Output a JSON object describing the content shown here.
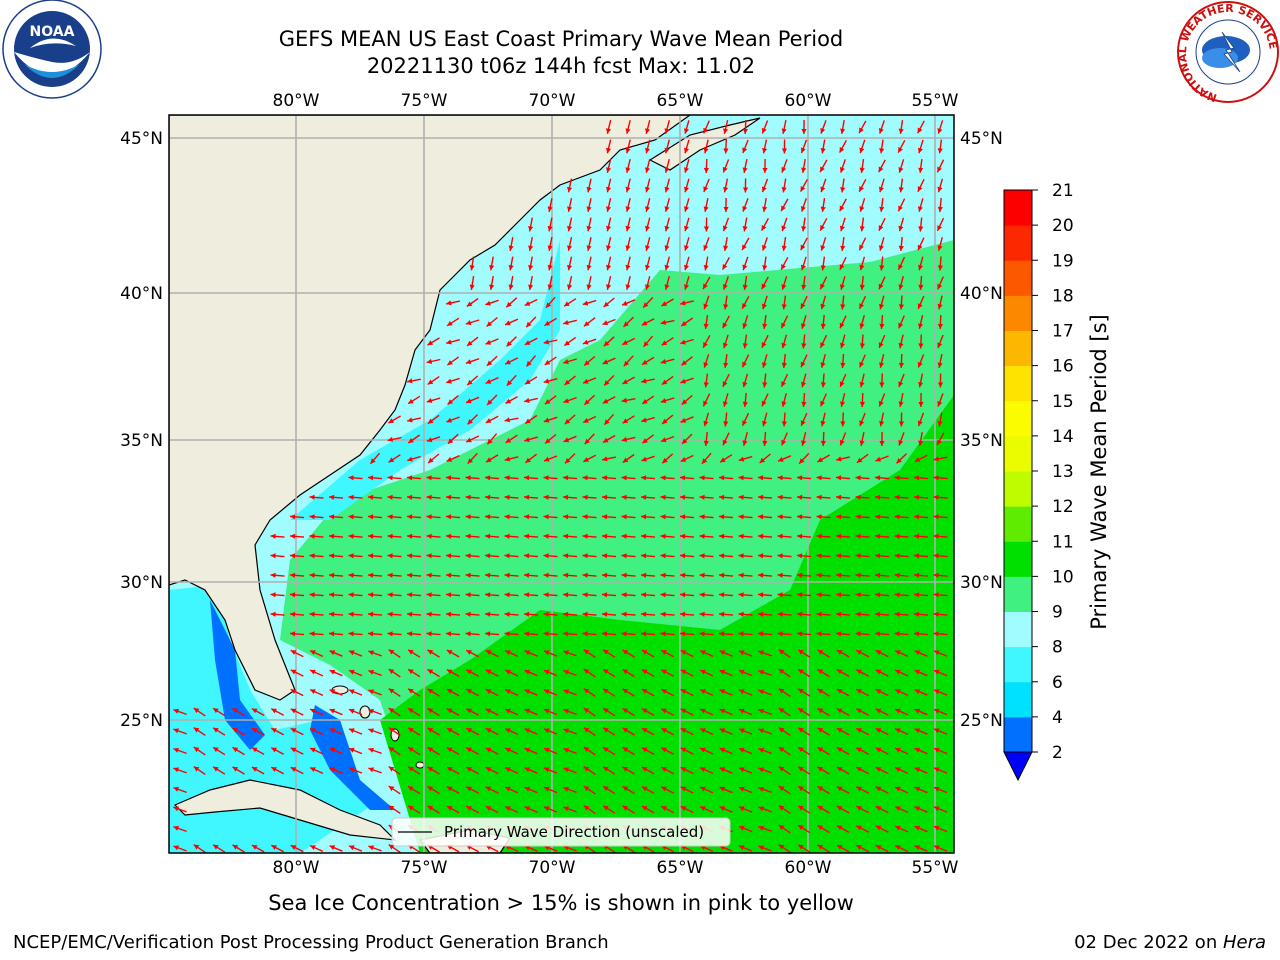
{
  "title": {
    "line1": "GEFS MEAN US East Coast Primary Wave Mean Period",
    "line2": "20221130 t06z 144h fcst   Max: 11.02"
  },
  "map": {
    "lon_labels": [
      "80°W",
      "75°W",
      "70°W",
      "65°W",
      "60°W",
      "55°W"
    ],
    "lat_labels": [
      "45°N",
      "40°N",
      "35°N",
      "30°N",
      "25°N"
    ],
    "legend_label": "Primary Wave Direction (unscaled)",
    "arrow_color": "#ff0000",
    "land_color": "#efedde"
  },
  "colorbar": {
    "label": "Primary Wave Mean Period [s]",
    "ticks": [
      "2",
      "4",
      "6",
      "8",
      "9",
      "10",
      "11",
      "12",
      "13",
      "14",
      "15",
      "16",
      "17",
      "18",
      "19",
      "20",
      "21"
    ],
    "colors": [
      "#0070ff",
      "#00e0ff",
      "#40f6ff",
      "#a0fcff",
      "#40f080",
      "#00e000",
      "#60ec00",
      "#c0fc00",
      "#ecfc00",
      "#fcfc00",
      "#fce400",
      "#fcb800",
      "#fc8800",
      "#fc5800",
      "#fc2800",
      "#fc0000"
    ],
    "extend_color": "#0000ff"
  },
  "note": "Sea Ice Concentration > 15% is shown in pink to yellow",
  "footer": {
    "left": "NCEP/EMC/Verification Post Processing Product Generation Branch",
    "date": "02 Dec 2022 on ",
    "host": "Hera"
  },
  "logos": {
    "noaa_text": "NOAA",
    "nws_ring": "NATIONAL WEATHER SERVICE"
  }
}
